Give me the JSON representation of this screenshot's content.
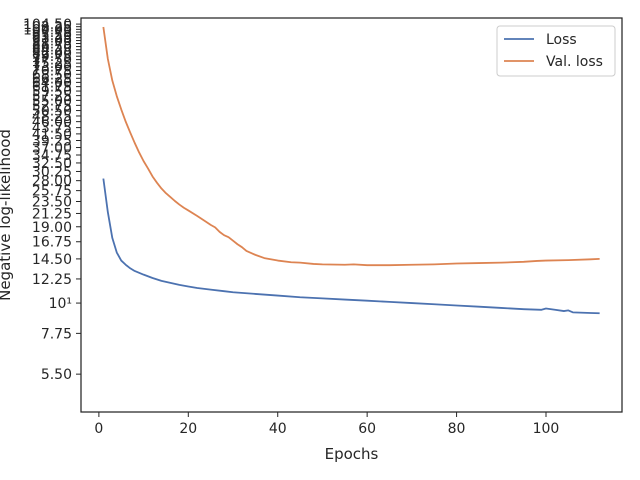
{
  "chart_data": {
    "type": "line",
    "xlabel": "Epochs",
    "ylabel": "Negative log-likelihood",
    "xlim": [
      -4,
      117
    ],
    "ylim": [
      4.0,
      110
    ],
    "y_scale": "log",
    "grid": false,
    "legend_position": "top-right",
    "x_ticks": [
      0,
      20,
      40,
      60,
      80,
      100
    ],
    "x_tick_labels": [
      "0",
      "20",
      "40",
      "60",
      "80",
      "100"
    ],
    "y_ticks": [
      5.5,
      7.75,
      10,
      12.25,
      14.5,
      16.75,
      19.0,
      21.25,
      23.5,
      25.75,
      28.0,
      30.25,
      32.5,
      34.75,
      37.0,
      39.25,
      41.5,
      43.75,
      46.0,
      48.25,
      50.5,
      52.75,
      55.0,
      57.25,
      59.5,
      61.75,
      64.0,
      66.25,
      68.5,
      70.75,
      73.0,
      75.25,
      77.5,
      79.75,
      82.0,
      84.25,
      86.5,
      88.75,
      91.0,
      93.25,
      95.5,
      97.75,
      100.0,
      102.25,
      104.5
    ],
    "y_tick_labels": [
      "5.50",
      "7.75",
      "10¹",
      "12.25",
      "14.50",
      "16.75",
      "19.00",
      "21.25",
      "23.50",
      "25.75",
      "28.00",
      "30.25",
      "32.50",
      "34.75",
      "37.00",
      "39.25",
      "41.50",
      "43.75",
      "46.00",
      "48.25",
      "50.50",
      "52.75",
      "55.00",
      "57.25",
      "59.50",
      "61.75",
      "64.00",
      "66.25",
      "68.50",
      "70.75",
      "73.00",
      "75.25",
      "77.50",
      "79.75",
      "82.00",
      "84.25",
      "86.50",
      "88.75",
      "91.00",
      "93.25",
      "95.50",
      "97.75",
      "100.00",
      "102.25",
      "104.50"
    ],
    "series": [
      {
        "name": "Loss",
        "color": "#4c72b0",
        "points": [
          [
            1,
            28.5
          ],
          [
            2,
            21.5
          ],
          [
            3,
            17.3
          ],
          [
            4,
            15.3
          ],
          [
            5,
            14.3
          ],
          [
            6,
            13.8
          ],
          [
            7,
            13.4
          ],
          [
            8,
            13.1
          ],
          [
            9,
            12.9
          ],
          [
            10,
            12.7
          ],
          [
            12,
            12.35
          ],
          [
            14,
            12.05
          ],
          [
            16,
            11.85
          ],
          [
            18,
            11.65
          ],
          [
            20,
            11.5
          ],
          [
            22,
            11.35
          ],
          [
            25,
            11.2
          ],
          [
            28,
            11.05
          ],
          [
            30,
            10.95
          ],
          [
            35,
            10.8
          ],
          [
            40,
            10.65
          ],
          [
            45,
            10.5
          ],
          [
            50,
            10.4
          ],
          [
            55,
            10.3
          ],
          [
            60,
            10.2
          ],
          [
            65,
            10.1
          ],
          [
            70,
            10.0
          ],
          [
            75,
            9.9
          ],
          [
            80,
            9.8
          ],
          [
            85,
            9.7
          ],
          [
            90,
            9.6
          ],
          [
            95,
            9.5
          ],
          [
            99,
            9.45
          ],
          [
            100,
            9.55
          ],
          [
            102,
            9.45
          ],
          [
            104,
            9.35
          ],
          [
            105,
            9.4
          ],
          [
            106,
            9.25
          ],
          [
            110,
            9.2
          ],
          [
            112,
            9.18
          ]
        ]
      },
      {
        "name": "Val. loss",
        "color": "#dd8452",
        "points": [
          [
            1,
            102
          ],
          [
            2,
            78
          ],
          [
            3,
            65
          ],
          [
            4,
            57
          ],
          [
            5,
            51
          ],
          [
            6,
            46
          ],
          [
            7,
            42
          ],
          [
            8,
            38.5
          ],
          [
            9,
            35.5
          ],
          [
            10,
            33
          ],
          [
            11,
            31
          ],
          [
            12,
            29
          ],
          [
            13,
            27.5
          ],
          [
            14,
            26.2
          ],
          [
            15,
            25.2
          ],
          [
            16,
            24.4
          ],
          [
            17,
            23.6
          ],
          [
            18,
            22.9
          ],
          [
            19,
            22.3
          ],
          [
            20,
            21.8
          ],
          [
            22,
            20.8
          ],
          [
            24,
            19.8
          ],
          [
            25,
            19.3
          ],
          [
            26,
            18.9
          ],
          [
            27,
            18.2
          ],
          [
            28,
            17.7
          ],
          [
            29,
            17.4
          ],
          [
            30,
            16.9
          ],
          [
            31,
            16.4
          ],
          [
            32,
            16.0
          ],
          [
            33,
            15.5
          ],
          [
            35,
            15.0
          ],
          [
            37,
            14.6
          ],
          [
            40,
            14.3
          ],
          [
            43,
            14.1
          ],
          [
            45,
            14.05
          ],
          [
            48,
            13.9
          ],
          [
            50,
            13.85
          ],
          [
            55,
            13.8
          ],
          [
            57,
            13.85
          ],
          [
            60,
            13.75
          ],
          [
            65,
            13.75
          ],
          [
            70,
            13.8
          ],
          [
            75,
            13.85
          ],
          [
            80,
            13.95
          ],
          [
            85,
            14.0
          ],
          [
            90,
            14.05
          ],
          [
            95,
            14.15
          ],
          [
            98,
            14.25
          ],
          [
            100,
            14.3
          ],
          [
            105,
            14.35
          ],
          [
            110,
            14.45
          ],
          [
            112,
            14.5
          ]
        ]
      }
    ]
  }
}
